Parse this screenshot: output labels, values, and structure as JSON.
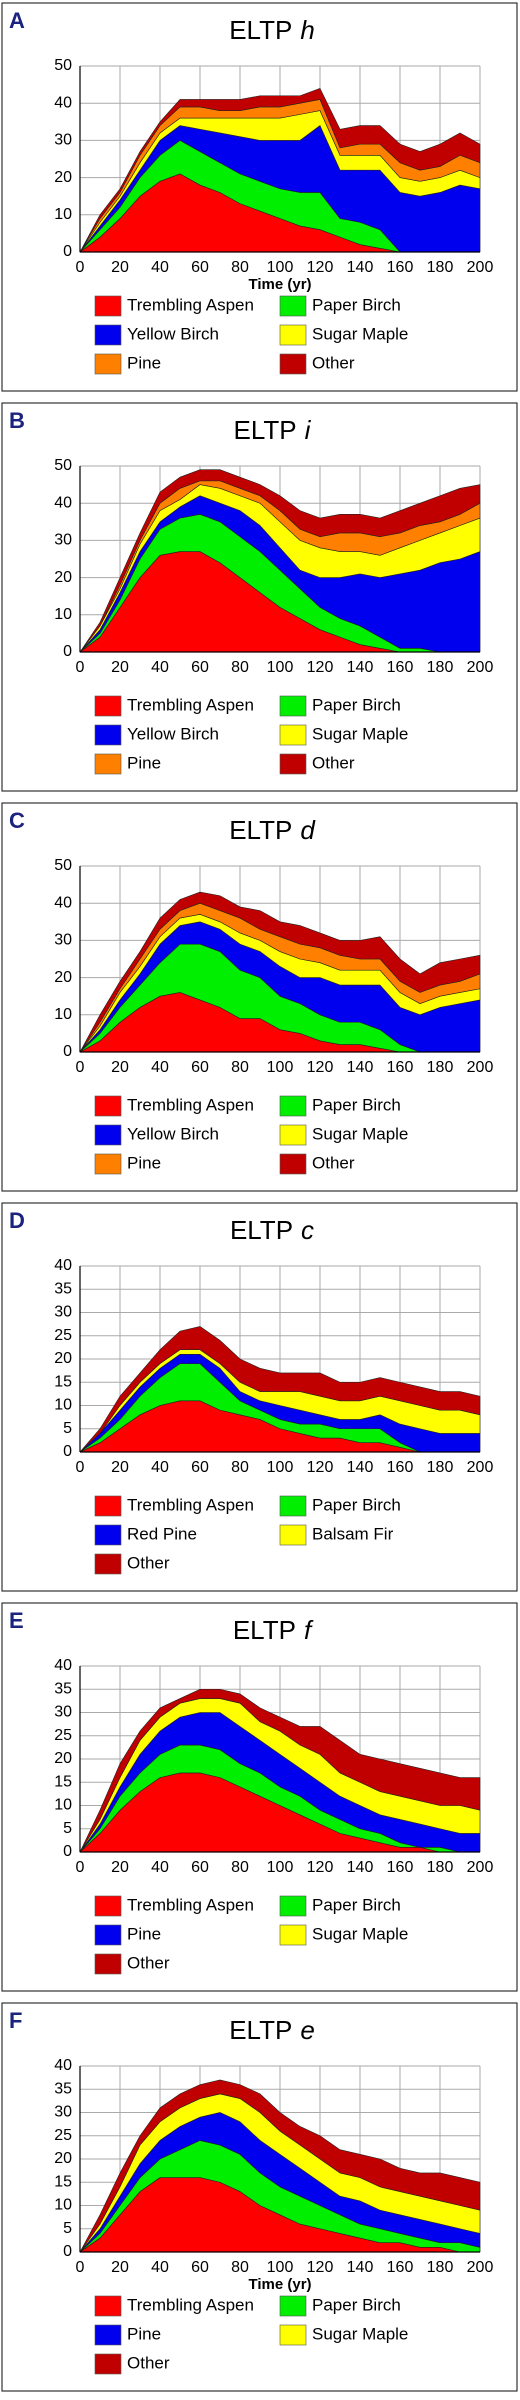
{
  "chart_data": [
    {
      "panel_label": "A",
      "type": "area",
      "stacked": true,
      "title": "ELTP",
      "title_italic": "h",
      "xlabel": "Time (yr)",
      "x": [
        0,
        10,
        20,
        30,
        40,
        50,
        60,
        70,
        80,
        90,
        100,
        110,
        120,
        130,
        140,
        150,
        160,
        170,
        180,
        190,
        200
      ],
      "xlim": [
        0,
        200
      ],
      "xticks": [
        0,
        20,
        40,
        60,
        80,
        100,
        120,
        140,
        160,
        180,
        200
      ],
      "ylim": [
        0,
        50
      ],
      "yticks": [
        0,
        10,
        20,
        30,
        40,
        50
      ],
      "grid": true,
      "series": [
        {
          "name": "Trembling Aspen",
          "color": "#ff0000",
          "values": [
            0,
            4,
            9,
            15,
            19,
            21,
            18,
            16,
            13,
            11,
            9,
            7,
            6,
            4,
            2,
            1,
            0,
            0,
            0,
            0,
            0
          ]
        },
        {
          "name": "Paper Birch",
          "color": "#00ee00",
          "values": [
            0,
            2,
            3,
            5,
            7,
            9,
            9,
            8,
            8,
            8,
            8,
            9,
            10,
            5,
            6,
            5,
            0,
            0,
            0,
            0,
            0
          ]
        },
        {
          "name": "Yellow Birch",
          "color": "#0000ee",
          "values": [
            0,
            1,
            2,
            2,
            4,
            4,
            6,
            8,
            10,
            11,
            13,
            14,
            18,
            13,
            14,
            16,
            16,
            15,
            16,
            18,
            17
          ]
        },
        {
          "name": "Sugar Maple",
          "color": "#ffff00",
          "values": [
            0,
            1,
            1,
            2,
            2,
            2,
            3,
            4,
            5,
            6,
            6,
            7,
            4,
            4,
            4,
            4,
            4,
            4,
            4,
            4,
            3
          ]
        },
        {
          "name": "Pine",
          "color": "#ff8000",
          "values": [
            0,
            1,
            1,
            2,
            2,
            3,
            3,
            2,
            2,
            3,
            3,
            3,
            3,
            2,
            3,
            3,
            4,
            3,
            3,
            4,
            4
          ]
        },
        {
          "name": "Other",
          "color": "#c00000",
          "values": [
            0,
            1,
            1,
            1,
            1,
            2,
            2,
            3,
            3,
            3,
            3,
            2,
            3,
            5,
            5,
            5,
            5,
            5,
            6,
            6,
            5
          ]
        }
      ]
    },
    {
      "panel_label": "B",
      "type": "area",
      "stacked": true,
      "title": "ELTP",
      "title_italic": "i",
      "x": [
        0,
        10,
        20,
        30,
        40,
        50,
        60,
        70,
        80,
        90,
        100,
        110,
        120,
        130,
        140,
        150,
        160,
        170,
        180,
        190,
        200
      ],
      "xlim": [
        0,
        200
      ],
      "xticks": [
        0,
        20,
        40,
        60,
        80,
        100,
        120,
        140,
        160,
        180,
        200
      ],
      "ylim": [
        0,
        50
      ],
      "yticks": [
        0,
        10,
        20,
        30,
        40,
        50
      ],
      "grid": true,
      "series": [
        {
          "name": "Trembling Aspen",
          "color": "#ff0000",
          "values": [
            0,
            4,
            12,
            20,
            26,
            27,
            27,
            24,
            20,
            16,
            12,
            9,
            6,
            4,
            2,
            1,
            0,
            0,
            0,
            0,
            0
          ]
        },
        {
          "name": "Paper Birch",
          "color": "#00ee00",
          "values": [
            0,
            1,
            2,
            5,
            7,
            9,
            10,
            11,
            11,
            11,
            10,
            8,
            6,
            5,
            5,
            3,
            1,
            1,
            0,
            0,
            0
          ]
        },
        {
          "name": "Yellow Birch",
          "color": "#0000ee",
          "values": [
            0,
            1,
            2,
            2,
            2,
            3,
            5,
            5,
            7,
            7,
            6,
            5,
            8,
            11,
            14,
            16,
            20,
            21,
            24,
            25,
            27
          ]
        },
        {
          "name": "Sugar Maple",
          "color": "#ffff00",
          "values": [
            0,
            1,
            1,
            2,
            3,
            2,
            3,
            4,
            4,
            6,
            7,
            8,
            8,
            7,
            6,
            6,
            7,
            8,
            8,
            9,
            9
          ]
        },
        {
          "name": "Pine",
          "color": "#ff8000",
          "values": [
            0,
            0,
            1,
            1,
            2,
            3,
            1,
            2,
            2,
            2,
            3,
            3,
            3,
            5,
            5,
            5,
            4,
            4,
            3,
            3,
            4
          ]
        },
        {
          "name": "Other",
          "color": "#c00000",
          "values": [
            0,
            1,
            2,
            2,
            3,
            3,
            3,
            3,
            3,
            3,
            4,
            5,
            5,
            5,
            5,
            5,
            6,
            6,
            7,
            7,
            5
          ]
        }
      ]
    },
    {
      "panel_label": "C",
      "type": "area",
      "stacked": true,
      "title": "ELTP",
      "title_italic": "d",
      "x": [
        0,
        10,
        20,
        30,
        40,
        50,
        60,
        70,
        80,
        90,
        100,
        110,
        120,
        130,
        140,
        150,
        160,
        170,
        180,
        190,
        200
      ],
      "xlim": [
        0,
        200
      ],
      "xticks": [
        0,
        20,
        40,
        60,
        80,
        100,
        120,
        140,
        160,
        180,
        200
      ],
      "ylim": [
        0,
        50
      ],
      "yticks": [
        0,
        10,
        20,
        30,
        40,
        50
      ],
      "grid": true,
      "series": [
        {
          "name": "Trembling Aspen",
          "color": "#ff0000",
          "values": [
            0,
            3,
            8,
            12,
            15,
            16,
            14,
            12,
            9,
            9,
            6,
            5,
            3,
            2,
            2,
            1,
            0,
            0,
            0,
            0,
            0
          ]
        },
        {
          "name": "Paper Birch",
          "color": "#00ee00",
          "values": [
            0,
            2,
            4,
            6,
            9,
            13,
            15,
            15,
            13,
            11,
            9,
            8,
            7,
            6,
            6,
            5,
            2,
            0,
            0,
            0,
            0
          ]
        },
        {
          "name": "Yellow Birch",
          "color": "#0000ee",
          "values": [
            0,
            1,
            2,
            3,
            5,
            5,
            6,
            6,
            7,
            7,
            8,
            7,
            10,
            10,
            10,
            12,
            10,
            10,
            12,
            13,
            14
          ]
        },
        {
          "name": "Sugar Maple",
          "color": "#ffff00",
          "values": [
            0,
            1,
            2,
            2,
            2,
            2,
            2,
            2,
            3,
            3,
            4,
            5,
            4,
            4,
            4,
            4,
            4,
            3,
            3,
            3,
            3
          ]
        },
        {
          "name": "Pine",
          "color": "#ff8000",
          "values": [
            0,
            1,
            1,
            2,
            2,
            2,
            3,
            3,
            4,
            3,
            4,
            4,
            4,
            4,
            3,
            3,
            3,
            3,
            3,
            3,
            4
          ]
        },
        {
          "name": "Other",
          "color": "#c00000",
          "values": [
            0,
            2,
            2,
            2,
            3,
            3,
            3,
            4,
            3,
            5,
            4,
            5,
            4,
            4,
            5,
            6,
            6,
            5,
            6,
            6,
            5
          ]
        }
      ]
    },
    {
      "panel_label": "D",
      "type": "area",
      "stacked": true,
      "title": "ELTP",
      "title_italic": "c",
      "x": [
        0,
        10,
        20,
        30,
        40,
        50,
        60,
        70,
        80,
        90,
        100,
        110,
        120,
        130,
        140,
        150,
        160,
        170,
        180,
        190,
        200
      ],
      "xlim": [
        0,
        200
      ],
      "xticks": [
        0,
        20,
        40,
        60,
        80,
        100,
        120,
        140,
        160,
        180,
        200
      ],
      "ylim": [
        0,
        40
      ],
      "yticks": [
        0,
        5,
        10,
        15,
        20,
        25,
        30,
        35,
        40
      ],
      "grid": true,
      "series": [
        {
          "name": "Trembling Aspen",
          "color": "#ff0000",
          "values": [
            0,
            2,
            5,
            8,
            10,
            11,
            11,
            9,
            8,
            7,
            5,
            4,
            3,
            3,
            2,
            2,
            1,
            0,
            0,
            0,
            0
          ]
        },
        {
          "name": "Paper Birch",
          "color": "#00ee00",
          "values": [
            0,
            1,
            2,
            4,
            6,
            8,
            8,
            6,
            3,
            2,
            2,
            2,
            3,
            2,
            3,
            3,
            1,
            0,
            0,
            0,
            0
          ]
        },
        {
          "name": "Red Pine",
          "color": "#0000ee",
          "values": [
            0,
            1,
            2,
            2,
            2,
            2,
            2,
            3,
            2,
            2,
            3,
            3,
            2,
            2,
            2,
            3,
            4,
            5,
            4,
            4,
            4
          ]
        },
        {
          "name": "Balsam Fir",
          "color": "#ffff00",
          "values": [
            0,
            0,
            1,
            1,
            1,
            1,
            1,
            1,
            2,
            2,
            3,
            4,
            4,
            4,
            4,
            4,
            5,
            5,
            5,
            5,
            4
          ]
        },
        {
          "name": "Other",
          "color": "#c00000",
          "values": [
            0,
            1,
            2,
            2,
            3,
            4,
            5,
            5,
            5,
            5,
            4,
            4,
            5,
            4,
            4,
            4,
            4,
            4,
            4,
            4,
            4
          ]
        }
      ]
    },
    {
      "panel_label": "E",
      "type": "area",
      "stacked": true,
      "title": "ELTP",
      "title_italic": "f",
      "x": [
        0,
        10,
        20,
        30,
        40,
        50,
        60,
        70,
        80,
        90,
        100,
        110,
        120,
        130,
        140,
        150,
        160,
        170,
        180,
        190,
        200
      ],
      "xlim": [
        0,
        200
      ],
      "xticks": [
        0,
        20,
        40,
        60,
        80,
        100,
        120,
        140,
        160,
        180,
        200
      ],
      "ylim": [
        0,
        40
      ],
      "yticks": [
        0,
        5,
        10,
        15,
        20,
        25,
        30,
        35,
        40
      ],
      "grid": true,
      "series": [
        {
          "name": "Trembling Aspen",
          "color": "#ff0000",
          "values": [
            0,
            4,
            9,
            13,
            16,
            17,
            17,
            16,
            14,
            12,
            10,
            8,
            6,
            4,
            3,
            2,
            1,
            1,
            0,
            0,
            0
          ]
        },
        {
          "name": "Paper Birch",
          "color": "#00ee00",
          "values": [
            0,
            1,
            3,
            4,
            5,
            6,
            6,
            6,
            5,
            5,
            4,
            4,
            3,
            3,
            2,
            2,
            1,
            0,
            1,
            0,
            0
          ]
        },
        {
          "name": "Pine",
          "color": "#0000ee",
          "values": [
            0,
            1,
            2,
            4,
            5,
            6,
            7,
            8,
            8,
            7,
            7,
            6,
            6,
            5,
            5,
            4,
            5,
            5,
            4,
            4,
            4
          ]
        },
        {
          "name": "Sugar Maple",
          "color": "#ffff00",
          "values": [
            0,
            1,
            2,
            3,
            3,
            3,
            3,
            3,
            5,
            4,
            5,
            5,
            6,
            5,
            5,
            5,
            5,
            5,
            5,
            6,
            5
          ]
        },
        {
          "name": "Other",
          "color": "#c00000",
          "values": [
            0,
            2,
            3,
            2,
            2,
            1,
            2,
            2,
            2,
            3,
            3,
            4,
            6,
            7,
            6,
            7,
            7,
            7,
            7,
            6,
            7
          ]
        }
      ]
    },
    {
      "panel_label": "F",
      "type": "area",
      "stacked": true,
      "title": "ELTP",
      "title_italic": "e",
      "xlabel": "Time (yr)",
      "x": [
        0,
        10,
        20,
        30,
        40,
        50,
        60,
        70,
        80,
        90,
        100,
        110,
        120,
        130,
        140,
        150,
        160,
        170,
        180,
        190,
        200
      ],
      "xlim": [
        0,
        200
      ],
      "xticks": [
        0,
        20,
        40,
        60,
        80,
        100,
        120,
        140,
        160,
        180,
        200
      ],
      "ylim": [
        0,
        40
      ],
      "yticks": [
        0,
        5,
        10,
        15,
        20,
        25,
        30,
        35,
        40
      ],
      "grid": true,
      "series": [
        {
          "name": "Trembling Aspen",
          "color": "#ff0000",
          "values": [
            0,
            3,
            8,
            13,
            16,
            16,
            16,
            15,
            13,
            10,
            8,
            6,
            5,
            4,
            3,
            2,
            2,
            1,
            1,
            0,
            0
          ]
        },
        {
          "name": "Paper Birch",
          "color": "#00ee00",
          "values": [
            0,
            1,
            2,
            3,
            4,
            6,
            8,
            8,
            8,
            7,
            6,
            6,
            5,
            4,
            3,
            3,
            2,
            2,
            1,
            2,
            1
          ]
        },
        {
          "name": "Pine",
          "color": "#0000ee",
          "values": [
            0,
            1,
            2,
            3,
            4,
            5,
            5,
            7,
            7,
            7,
            7,
            6,
            5,
            4,
            5,
            4,
            4,
            4,
            4,
            3,
            3
          ]
        },
        {
          "name": "Sugar Maple",
          "color": "#ffff00",
          "values": [
            0,
            1,
            2,
            4,
            4,
            4,
            4,
            4,
            5,
            6,
            5,
            5,
            5,
            5,
            5,
            5,
            5,
            5,
            5,
            5,
            5
          ]
        },
        {
          "name": "Other",
          "color": "#c00000",
          "values": [
            0,
            2,
            3,
            2,
            3,
            3,
            3,
            3,
            3,
            4,
            4,
            4,
            5,
            5,
            5,
            6,
            5,
            5,
            6,
            6,
            6
          ]
        }
      ]
    }
  ]
}
